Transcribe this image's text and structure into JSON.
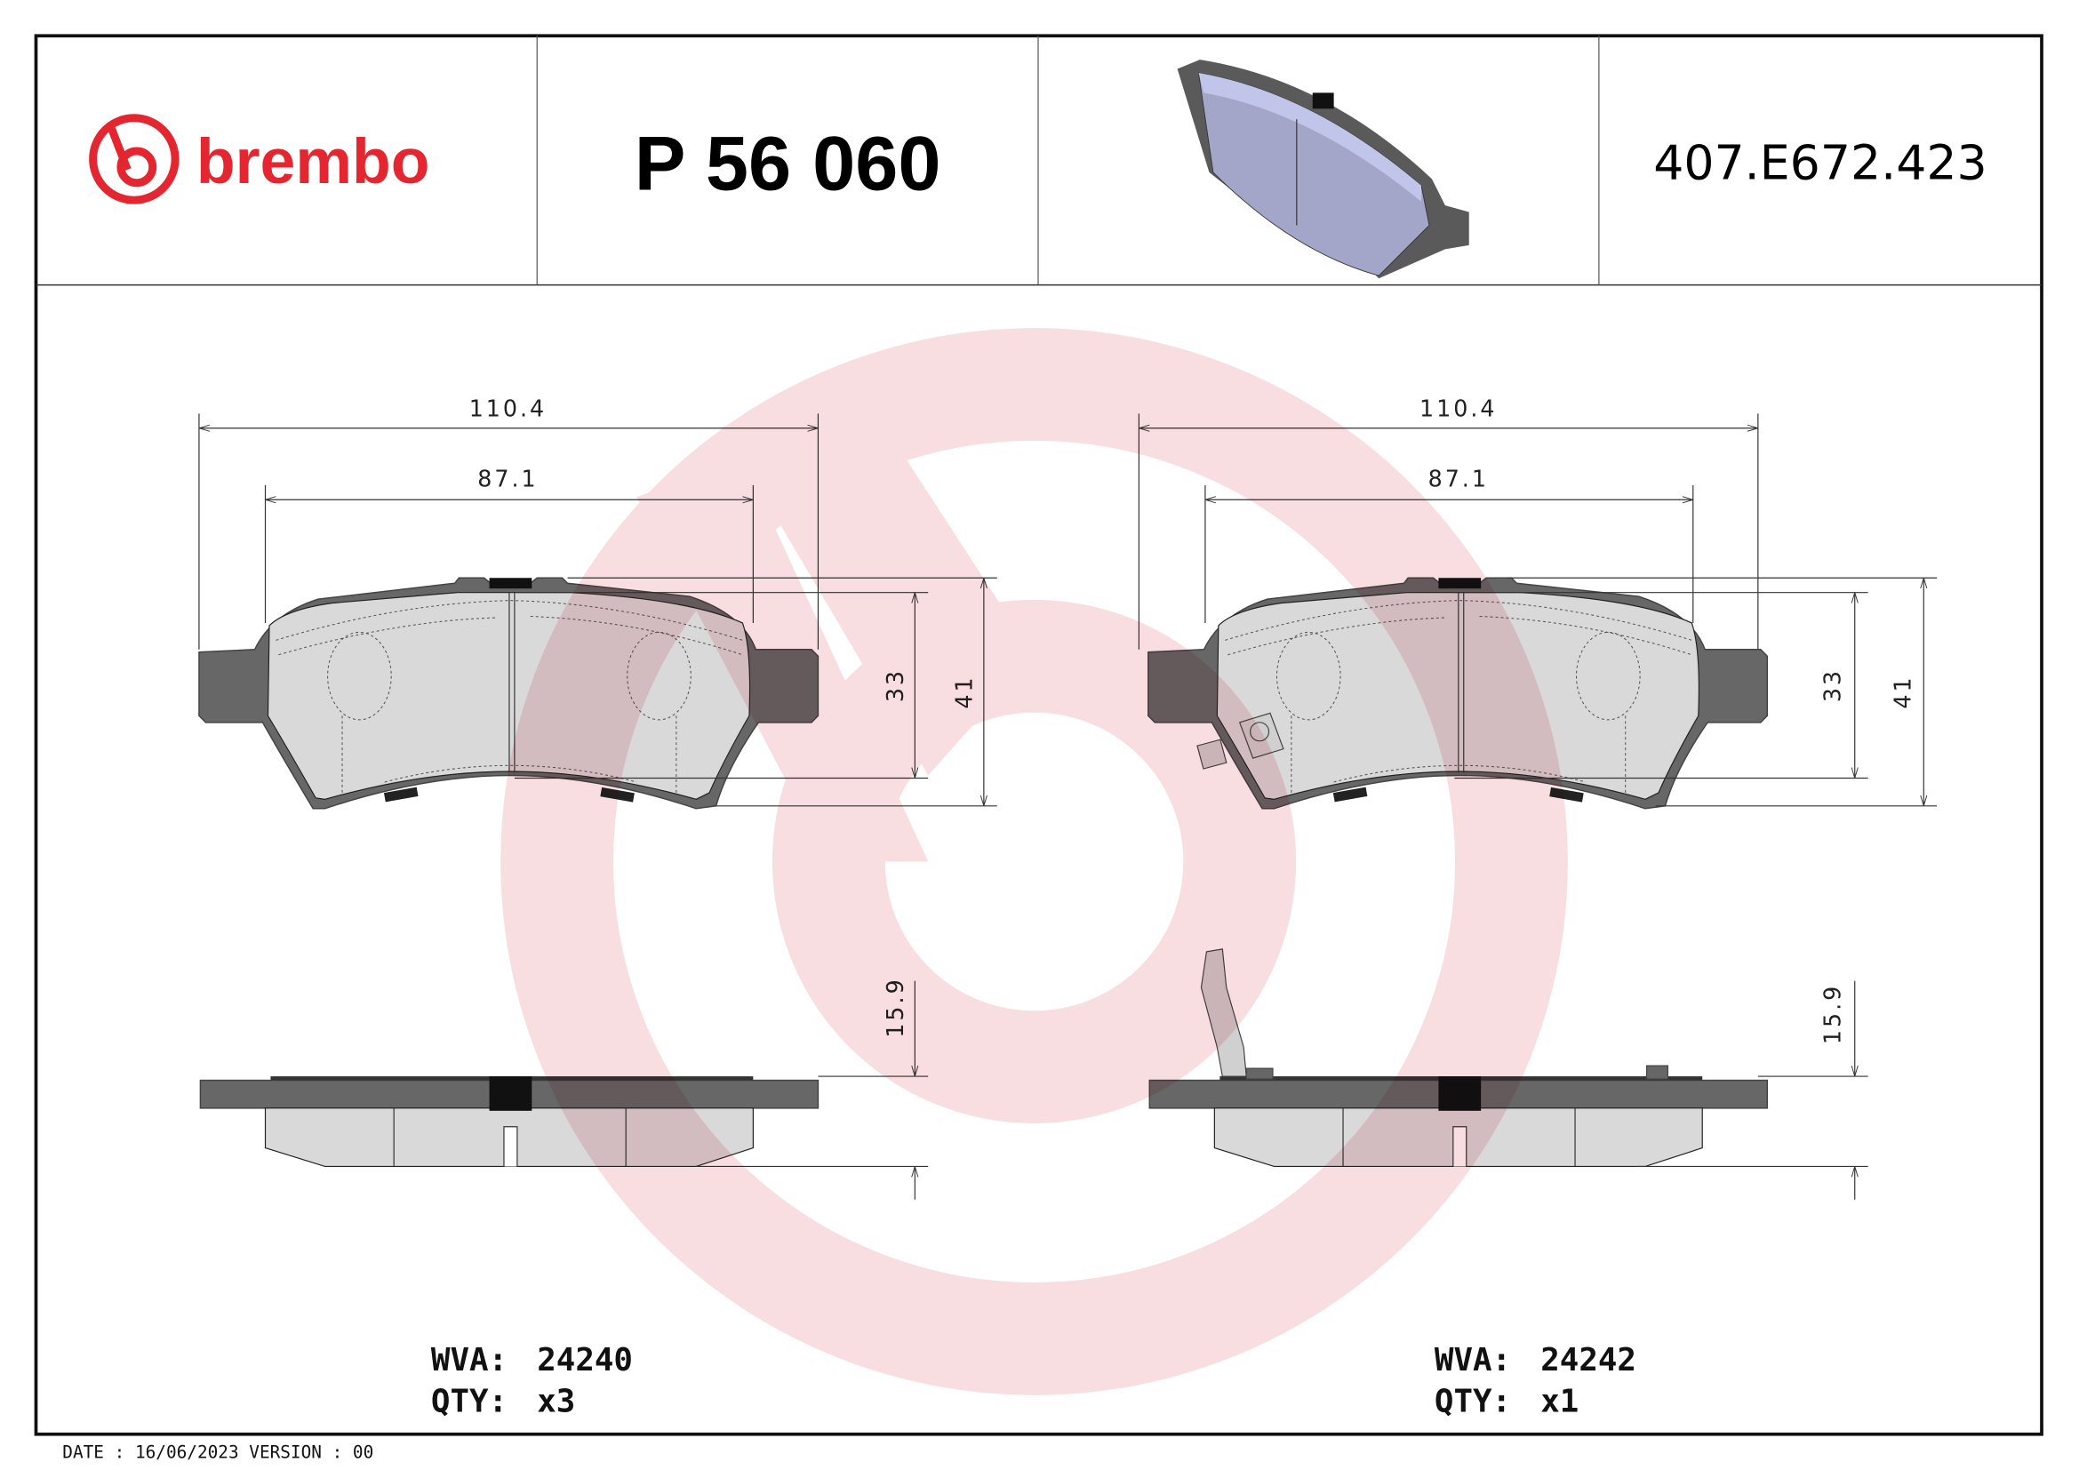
{
  "header": {
    "logo_text": "brembo",
    "brand_color": "#e3262f",
    "part_number": "P 56 060",
    "reference": "407.E672.423"
  },
  "drawings": [
    {
      "width_total": "110.4",
      "width_friction": "87.1",
      "height_friction": "33",
      "height_total": "41",
      "thickness": "15.9",
      "wva_label": "WVA:",
      "wva": "24240",
      "qty_label": "QTY:",
      "qty": "x3"
    },
    {
      "width_total": "110.4",
      "width_friction": "87.1",
      "height_friction": "33",
      "height_total": "41",
      "thickness": "15.9",
      "wva_label": "WVA:",
      "wva": "24242",
      "qty_label": "QTY:",
      "qty": "x1",
      "has_wear_sensor": true
    }
  ],
  "footer": {
    "date_version": "DATE : 16/06/2023 VERSION : 00"
  },
  "watermark_color": "#f6d2d7"
}
